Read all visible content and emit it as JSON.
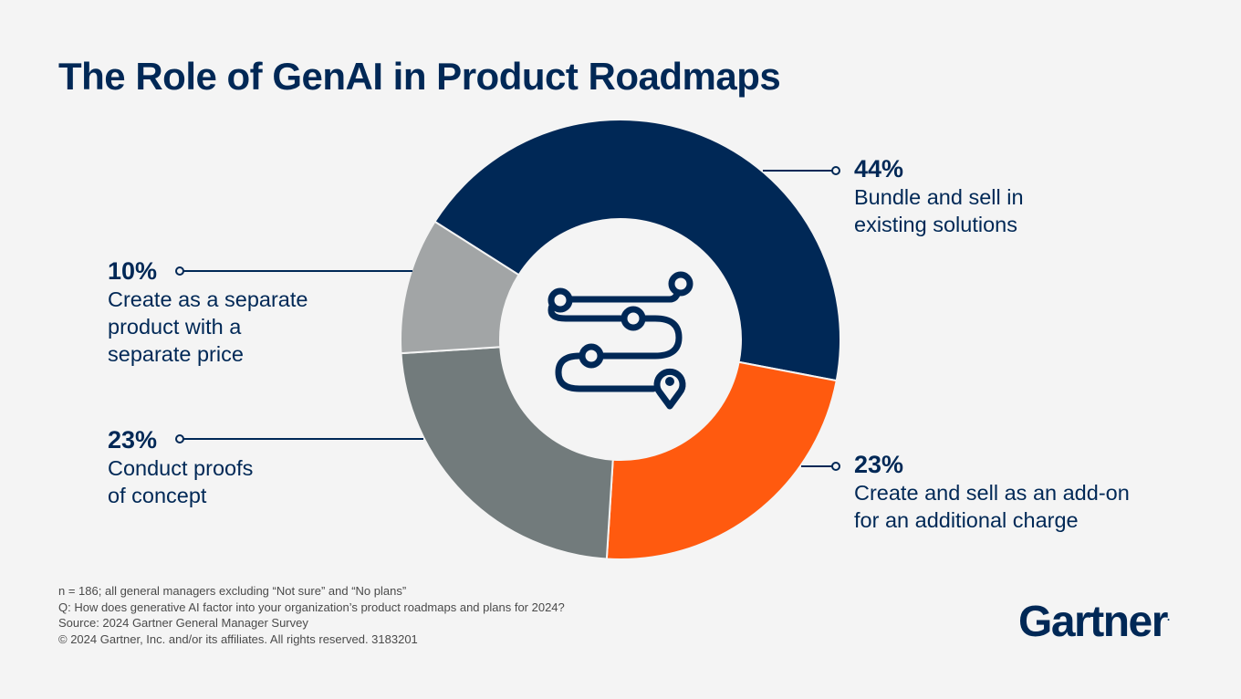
{
  "title": "The Role of GenAI in Product Roadmaps",
  "chart_data": {
    "type": "pie",
    "donut": true,
    "categories": [
      "Bundle and sell in existing solutions",
      "Create and sell as an add-on for an additional charge",
      "Conduct proofs of concept",
      "Create as a separate product with a separate price"
    ],
    "values": [
      44,
      23,
      23,
      10
    ],
    "colors": [
      "#002856",
      "#ff5a0f",
      "#727b7c",
      "#a2a5a6"
    ],
    "labels": [
      {
        "pct": "44%",
        "lines": [
          "Bundle and sell in",
          "existing solutions"
        ]
      },
      {
        "pct": "23%",
        "lines": [
          "Create and sell as an add-on",
          "for an additional charge"
        ]
      },
      {
        "pct": "23%",
        "lines": [
          "Conduct proofs",
          "of concept"
        ]
      },
      {
        "pct": "10%",
        "lines": [
          "Create as a separate",
          "product with a",
          "separate price"
        ]
      }
    ]
  },
  "center_icon": "roadmap-path-icon",
  "footnotes": [
    "n = 186; all general managers excluding “Not sure” and “No plans”",
    "Q: How does generative AI factor into your organization’s product roadmaps and plans for 2024?",
    "Source: 2024 Gartner General Manager Survey",
    "© 2024 Gartner, Inc. and/or its affiliates. All rights reserved. 3183201"
  ],
  "logo": {
    "text": "Gartner",
    "mark": "."
  }
}
